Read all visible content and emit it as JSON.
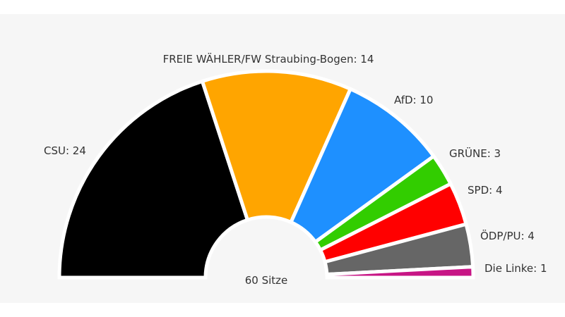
{
  "chart_data": {
    "type": "pie",
    "subtype": "parliament-semicircle",
    "total_label": "60 Sitze",
    "total": 60,
    "slices": [
      {
        "label": "CSU: 24",
        "name": "CSU",
        "value": 24,
        "color": "#000000"
      },
      {
        "label": "FREIE WÄHLER/FW Straubing-Bogen: 14",
        "name": "FREIE WÄHLER/FW Straubing-Bogen",
        "value": 14,
        "color": "#ffa500"
      },
      {
        "label": "AfD: 10",
        "name": "AfD",
        "value": 10,
        "color": "#1e90ff"
      },
      {
        "label": "GRÜNE: 3",
        "name": "GRÜNE",
        "value": 3,
        "color": "#32cd00"
      },
      {
        "label": "SPD: 4",
        "name": "SPD",
        "value": 4,
        "color": "#ff0000"
      },
      {
        "label": "ÖDP/PU: 4",
        "name": "ÖDP/PU",
        "value": 4,
        "color": "#666666"
      },
      {
        "label": "Die Linke: 1",
        "name": "Die Linke",
        "value": 1,
        "color": "#c71585"
      }
    ]
  }
}
